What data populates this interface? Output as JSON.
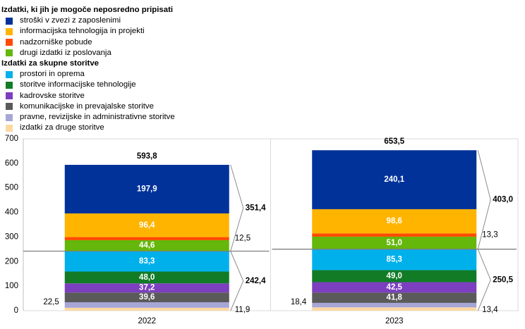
{
  "legend": {
    "group1_title": "Izdatki, ki jih je mogoče neposredno pripisati",
    "group2_title": "Izdatki za skupne storitve"
  },
  "chart_data": {
    "type": "bar",
    "stacked": true,
    "categories": [
      "2022",
      "2023"
    ],
    "ylim": [
      0,
      700
    ],
    "yticks": [
      0,
      100,
      200,
      300,
      400,
      500,
      600,
      700
    ],
    "grid": false,
    "legend_position": "top-left",
    "series": [
      {
        "name": "izdatki za druge storitve",
        "group": 2,
        "values": [
          11.9,
          13.4
        ],
        "color": "#fcd9a3",
        "label_out": true
      },
      {
        "name": "pravne, revizijske in administrativne storitve",
        "group": 2,
        "values": [
          22.5,
          18.4
        ],
        "color": "#a6a6d6",
        "label_out": true
      },
      {
        "name": "komunikacijske in prevajalske storitve",
        "group": 2,
        "values": [
          39.6,
          41.8
        ],
        "color": "#5a5a5a",
        "label_out": false
      },
      {
        "name": "kadrovske storitve",
        "group": 2,
        "values": [
          37.2,
          42.5
        ],
        "color": "#7c3fbf",
        "label_out": false
      },
      {
        "name": "storitve informacijske tehnologije",
        "group": 2,
        "values": [
          48.0,
          49.0
        ],
        "color": "#127b26",
        "label_out": false
      },
      {
        "name": "prostori in oprema",
        "group": 2,
        "values": [
          83.3,
          85.3
        ],
        "color": "#00b0eb",
        "label_out": false
      },
      {
        "name": "drugi izdatki iz poslovanja",
        "group": 1,
        "values": [
          44.6,
          51.0
        ],
        "color": "#65b70b",
        "label_out": false
      },
      {
        "name": "nadzorniške pobude",
        "group": 1,
        "values": [
          12.5,
          13.3
        ],
        "color": "#ff4b00",
        "label_out": true
      },
      {
        "name": "informacijska tehnologija in projekti",
        "group": 1,
        "values": [
          96.4,
          98.6
        ],
        "color": "#ffb400",
        "label_out": false
      },
      {
        "name": "stroški v zvezi z zaposlenimi",
        "group": 1,
        "values": [
          197.9,
          240.1
        ],
        "color": "#003299",
        "label_out": false
      }
    ],
    "totals": [
      593.8,
      653.5
    ],
    "group1_totals": [
      351.4,
      403.0
    ],
    "group2_totals": [
      242.4,
      250.5
    ],
    "value_labels": {
      "izdatki za druge storitve": [
        "11,9",
        "13,4"
      ],
      "pravne, revizijske in administrativne storitve": [
        "22,5",
        "18,4"
      ],
      "komunikacijske in prevajalske storitve": [
        "39,6",
        "41,8"
      ],
      "kadrovske storitve": [
        "37,2",
        "42,5"
      ],
      "storitve informacijske tehnologije": [
        "48,0",
        "49,0"
      ],
      "prostori in oprema": [
        "83,3",
        "85,3"
      ],
      "drugi izdatki iz poslovanja": [
        "44,6",
        "51,0"
      ],
      "nadzorniške pobude": [
        "12,5",
        "13,3"
      ],
      "informacijska tehnologija in projekti": [
        "96,4",
        "98,6"
      ],
      "stroški v zvezi z zaposlenimi": [
        "197,9",
        "240,1"
      ],
      "totals": [
        "593,8",
        "653,5"
      ],
      "group1_totals": [
        "351,4",
        "403,0"
      ],
      "group2_totals": [
        "242,4",
        "250,5"
      ]
    }
  }
}
